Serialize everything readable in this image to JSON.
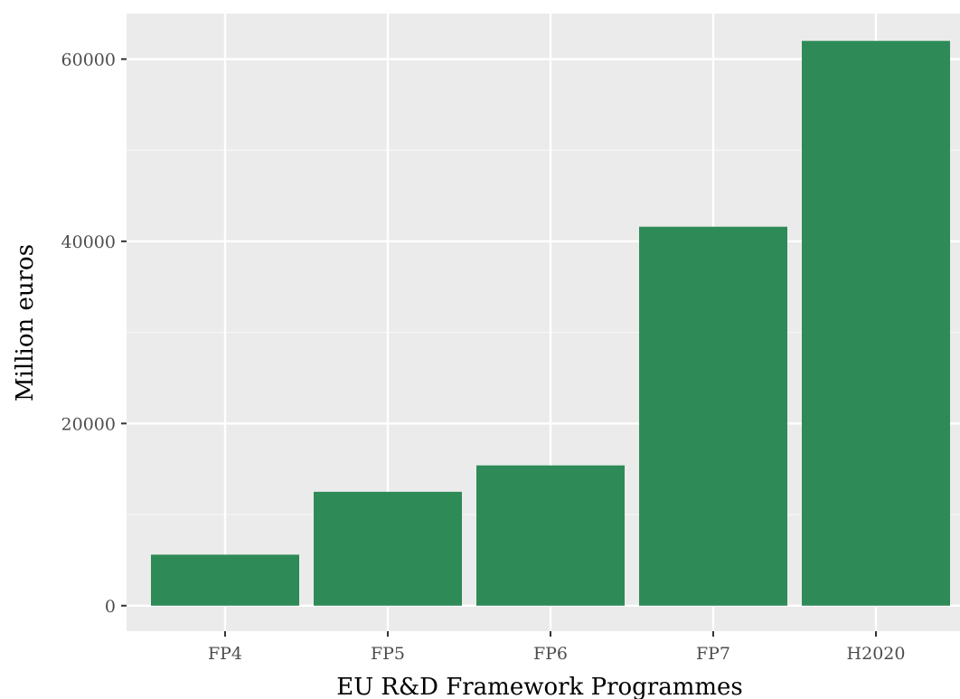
{
  "colors": {
    "panel_background": "#ebebeb",
    "grid_major": "#ffffff",
    "grid_minor": "#f7f7f7",
    "bar_fill": "#2e8b57",
    "tick_text": "#4d4d4d",
    "axis_title_text": "#000000"
  },
  "chart_data": {
    "type": "bar",
    "title": "",
    "xlabel": "EU R&D Framework Programmes",
    "ylabel": "Million euros",
    "categories": [
      "FP4",
      "FP5",
      "FP6",
      "FP7",
      "H2020"
    ],
    "values": [
      5600,
      12500,
      15400,
      41600,
      62000
    ],
    "ylim": [
      -2800,
      65000
    ],
    "yticks": [
      0,
      20000,
      40000,
      60000
    ],
    "ytick_labels": [
      "0",
      "20000",
      "40000",
      "60000"
    ],
    "grid": true,
    "legend": "none"
  }
}
